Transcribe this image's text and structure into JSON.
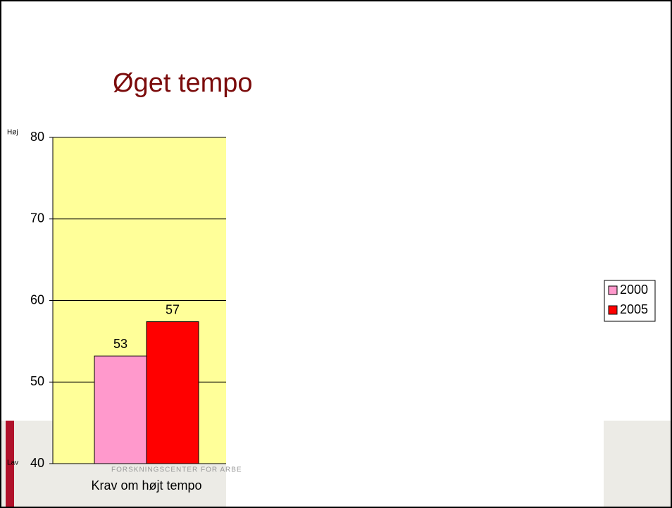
{
  "chart_data": {
    "type": "bar",
    "title": "Øget tempo",
    "footer_text": "FORSKNINGSCENTER FOR ARBE",
    "y_top_label": "Høj",
    "y_bottom_label": "Lav",
    "categories": [
      "Krav om højt tempo"
    ],
    "series": [
      {
        "name": "2000",
        "color": "#ff99cc",
        "values": [
          53.2
        ],
        "value_labels": [
          "53"
        ]
      },
      {
        "name": "2005",
        "color": "#ff0000",
        "values": [
          57.4
        ],
        "value_labels": [
          "57"
        ]
      }
    ],
    "ylim": [
      40,
      80
    ],
    "yticks": [
      40,
      50,
      60,
      70,
      80
    ],
    "grid": true,
    "plot_color": "#ffff99",
    "legend": "right"
  }
}
